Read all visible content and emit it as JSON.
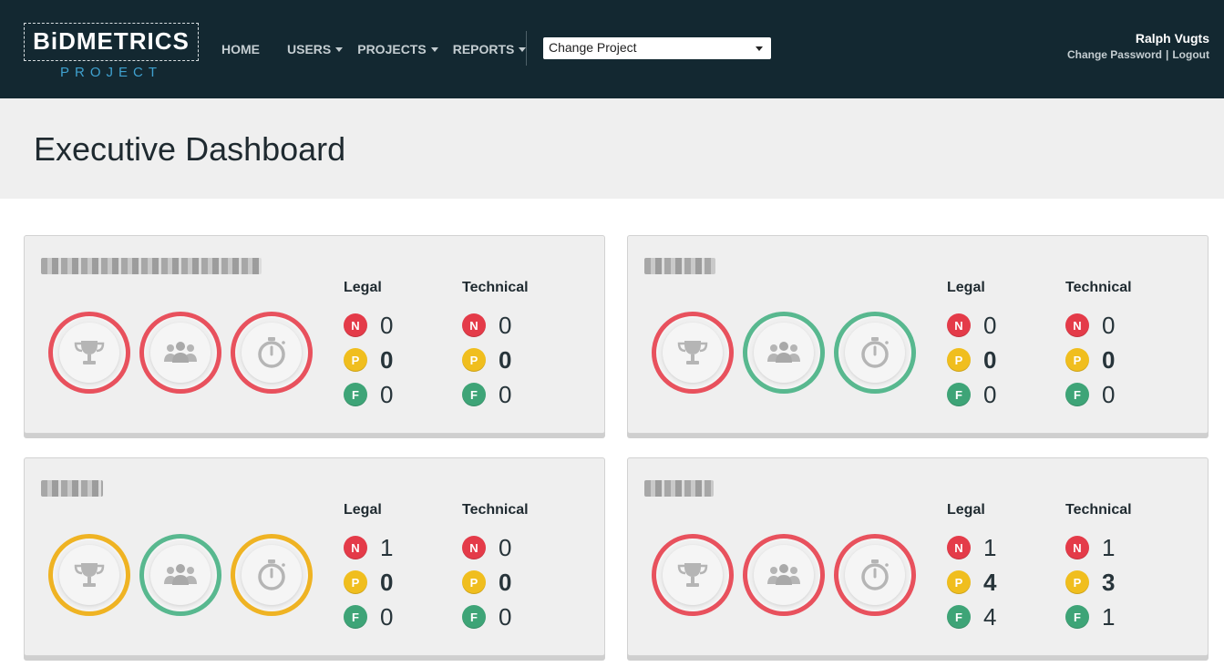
{
  "header": {
    "logo_main": "BiDMETRICS",
    "logo_sub": "PROJECT",
    "nav": [
      {
        "label": "HOME",
        "dropdown": false
      },
      {
        "label": "USERS",
        "dropdown": true
      },
      {
        "label": "PROJECTS",
        "dropdown": true
      },
      {
        "label": "REPORTS",
        "dropdown": true
      }
    ],
    "project_select": "Change Project",
    "user_name": "Ralph Vugts",
    "change_password": "Change Password",
    "separator": "|",
    "logout": "Logout"
  },
  "page_title": "Executive Dashboard",
  "colors": {
    "topbar": "#132831",
    "red": "#e8515d",
    "green": "#58b88f",
    "yellow": "#efb323",
    "badge_n": "#e43b49",
    "badge_p": "#f0be1e",
    "badge_f": "#3ea477"
  },
  "column_labels": {
    "legal": "Legal",
    "technical": "Technical"
  },
  "badge_letters": {
    "n": "N",
    "p": "P",
    "f": "F"
  },
  "icons": {
    "ring1": "trophy-icon",
    "ring2": "team-icon",
    "ring3": "stopwatch-icon"
  },
  "cards": [
    {
      "name": "",
      "rings": [
        "red",
        "red",
        "red"
      ],
      "legal": {
        "n": "0",
        "p": "0",
        "f": "0"
      },
      "technical": {
        "n": "0",
        "p": "0",
        "f": "0"
      }
    },
    {
      "name": "",
      "rings": [
        "red",
        "green",
        "green"
      ],
      "legal": {
        "n": "0",
        "p": "0",
        "f": "0"
      },
      "technical": {
        "n": "0",
        "p": "0",
        "f": "0"
      }
    },
    {
      "name": "",
      "rings": [
        "yellow",
        "green",
        "yellow"
      ],
      "legal": {
        "n": "1",
        "p": "0",
        "f": "0"
      },
      "technical": {
        "n": "0",
        "p": "0",
        "f": "0"
      }
    },
    {
      "name": "",
      "rings": [
        "red",
        "red",
        "red"
      ],
      "legal": {
        "n": "1",
        "p": "4",
        "f": "4"
      },
      "technical": {
        "n": "1",
        "p": "3",
        "f": "1"
      }
    }
  ]
}
